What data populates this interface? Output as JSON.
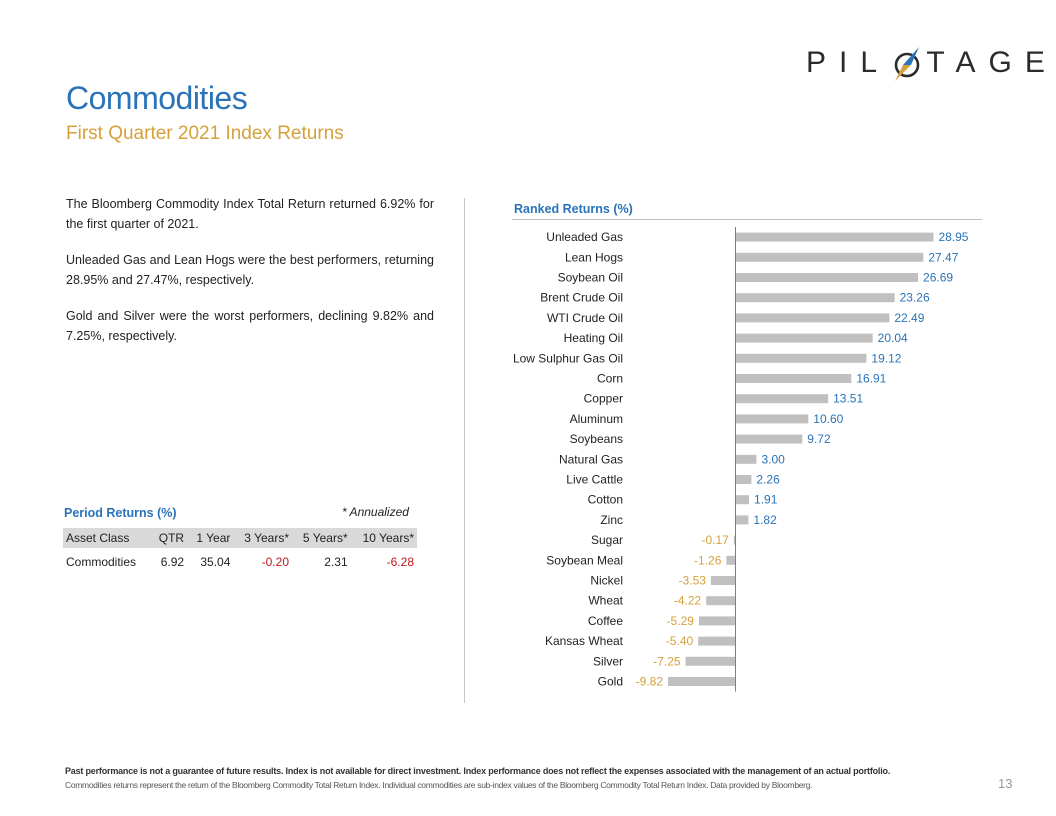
{
  "brand": {
    "logo_text": "PILOTAGE",
    "logo_accent": "#2a73b8",
    "logo_gold": "#d6a03a"
  },
  "header": {
    "title": "Commodities",
    "subtitle": "First Quarter 2021 Index Returns"
  },
  "summary": {
    "paragraphs": [
      "The Bloomberg Commodity Index Total Return returned 6.92% for the first quarter of 2021.",
      "Unleaded Gas and Lean Hogs were the best performers, returning 28.95% and 27.47%, respectively.",
      "Gold and Silver were the worst performers, declining 9.82% and 7.25%, respectively."
    ]
  },
  "period_returns": {
    "title": "Period Returns (%)",
    "note": "* Annualized",
    "columns": [
      "Asset Class",
      "QTR",
      "1 Year",
      "3 Years*",
      "5 Years*",
      "10 Years*"
    ],
    "row": {
      "asset": "Commodities",
      "qtr": "6.92",
      "one_year": "35.04",
      "three_years": "-0.20",
      "five_years": "2.31",
      "ten_years": "-6.28"
    }
  },
  "chart_data": {
    "type": "bar",
    "orientation": "horizontal",
    "title": "Ranked Returns (%)",
    "categories": [
      "Unleaded Gas",
      "Lean Hogs",
      "Soybean Oil",
      "Brent Crude Oil",
      "WTI Crude Oil",
      "Heating Oil",
      "Low Sulphur Gas Oil",
      "Corn",
      "Copper",
      "Aluminum",
      "Soybeans",
      "Natural Gas",
      "Live Cattle",
      "Cotton",
      "Zinc",
      "Sugar",
      "Soybean Meal",
      "Nickel",
      "Wheat",
      "Coffee",
      "Kansas Wheat",
      "Silver",
      "Gold"
    ],
    "values": [
      28.95,
      27.47,
      26.69,
      23.26,
      22.49,
      20.04,
      19.12,
      16.91,
      13.51,
      10.6,
      9.72,
      3.0,
      2.26,
      1.91,
      1.82,
      -0.17,
      -1.26,
      -3.53,
      -4.22,
      -5.29,
      -5.4,
      -7.25,
      -9.82
    ],
    "labels": [
      "28.95",
      "27.47",
      "26.69",
      "23.26",
      "22.49",
      "20.04",
      "19.12",
      "16.91",
      "13.51",
      "10.60",
      "9.72",
      "3.00",
      "2.26",
      "1.91",
      "1.82",
      "-0.17",
      "-1.26",
      "-3.53",
      "-4.22",
      "-5.29",
      "-5.40",
      "-7.25",
      "-9.82"
    ],
    "xlim": [
      -9.82,
      28.95
    ],
    "grid": false,
    "colors": {
      "bar": "#c0c0c0",
      "positive_label": "#2a73b8",
      "negative_label": "#d6a03a",
      "axis": "#7f7f7f"
    }
  },
  "footer": {
    "disclaimer": "Past performance is not a guarantee of future results. Index is not available for direct investment. Index performance does not reflect the expenses associated with the management of an actual portfolio.",
    "source": "Commodities returns represent the return of the Bloomberg Commodity Total Return Index. Individual commodities are sub-index values of the Bloomberg Commodity Total Return Index. Data provided by Bloomberg.",
    "page_number": "13"
  }
}
